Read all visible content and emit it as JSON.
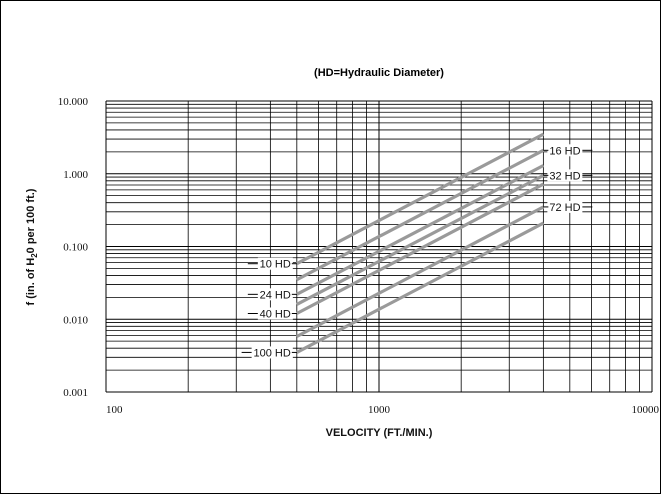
{
  "chart_data": {
    "type": "line",
    "title": "(HD=Hydraulic Diameter)",
    "xlabel": "VELOCITY (FT./MIN.)",
    "ylabel_main": "f (in. of H",
    "ylabel_sub": "2",
    "ylabel_rest": "0 per 100 ft.)",
    "x_scale": "log",
    "y_scale": "log",
    "xlim": [
      100,
      10000
    ],
    "ylim": [
      0.001,
      10
    ],
    "grid": true,
    "x_ticks": [
      "100",
      "1000",
      "10000"
    ],
    "y_ticks": [
      "10.000",
      "1.000",
      "0.100",
      "0.010",
      "0.001"
    ],
    "series": [
      {
        "name": "10 HD",
        "x": [
          500,
          4000
        ],
        "y": [
          0.058,
          3.5
        ]
      },
      {
        "name": "16 HD",
        "x": [
          500,
          4000
        ],
        "y": [
          0.035,
          2.1
        ]
      },
      {
        "name": "24 HD",
        "x": [
          500,
          4000
        ],
        "y": [
          0.022,
          1.3
        ]
      },
      {
        "name": "32 HD",
        "x": [
          500,
          4000
        ],
        "y": [
          0.016,
          0.95
        ]
      },
      {
        "name": "40 HD",
        "x": [
          500,
          4000
        ],
        "y": [
          0.012,
          0.72
        ]
      },
      {
        "name": "72 HD",
        "x": [
          500,
          4000
        ],
        "y": [
          0.0058,
          0.35
        ]
      },
      {
        "name": "100 HD",
        "x": [
          500,
          4000
        ],
        "y": [
          0.0035,
          0.21
        ]
      }
    ],
    "line_color": "#9a9a9a"
  }
}
